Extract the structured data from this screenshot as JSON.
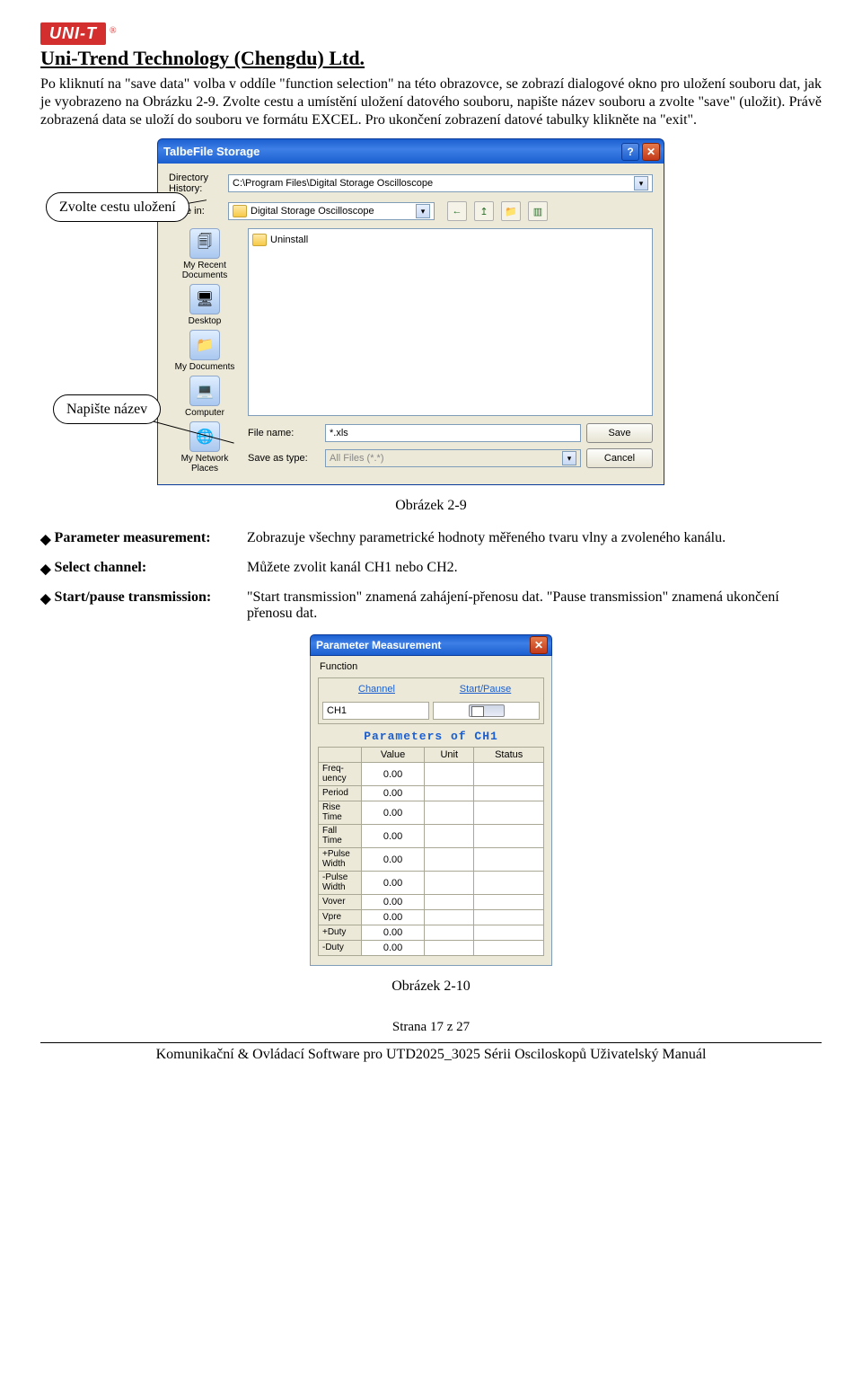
{
  "header": {
    "logo_text": "UNI-T",
    "reg": "®",
    "company": "Uni-Trend Technology (Chengdu) Ltd."
  },
  "paragraph": "Po kliknutí na \"save data\" volba v oddíle \"function selection\" na této obrazovce, se zobrazí dialogové okno pro uložení souboru dat, jak je vyobrazeno na Obrázku 2-9. Zvolte cestu a umístění uložení datového souboru, napište název souboru a zvolte \"save\" (uložit). Právě zobrazená data se uloží do souboru ve formátu EXCEL. Pro ukončení zobrazení datové tabulky klikněte na \"exit\".",
  "callouts": {
    "path": "Zvolte cestu\nuložení",
    "name": "Napište\nnázev"
  },
  "save_dialog": {
    "title": "TalbeFile Storage",
    "dir_history_label": "Directory\nHistory:",
    "dir_history_value": "C:\\Program Files\\Digital Storage Oscilloscope",
    "save_in_label": "Save in:",
    "save_in_value": "Digital Storage Oscilloscope",
    "nav_icons": [
      "←",
      "↥",
      "📁",
      "▥"
    ],
    "places": [
      {
        "icon": "🗐",
        "label": "My Recent\nDocuments"
      },
      {
        "icon": "🖥",
        "label": "Desktop"
      },
      {
        "icon": "📁",
        "label": "My Documents"
      },
      {
        "icon": "💻",
        "label": "Computer"
      },
      {
        "icon": "🌐",
        "label": "My Network\nPlaces"
      }
    ],
    "file_list": [
      {
        "name": "Uninstall"
      }
    ],
    "filename_label": "File name:",
    "filename_value": "*.xls",
    "filetype_label": "Save as type:",
    "filetype_value": "All Files (*.*)",
    "save_btn": "Save",
    "cancel_btn": "Cancel"
  },
  "fig1_caption": "Obrázek 2-9",
  "definitions": [
    {
      "label": "Parameter measurement:",
      "text": "Zobrazuje všechny parametrické hodnoty měřeného tvaru vlny a zvoleného kanálu."
    },
    {
      "label": "Select channel:",
      "text": "Můžete zvolit kanál CH1 nebo CH2."
    },
    {
      "label": "Start/pause transmission:",
      "text": "\"Start transmission\" znamená zahájení-přenosu dat. \"Pause transmission\" znamená ukončení přenosu dat."
    }
  ],
  "pm_dialog": {
    "title": "Parameter Measurement",
    "menu": "Function",
    "col1": "Channel",
    "col2": "Start/Pause",
    "channel_value": "CH1",
    "section_title": "Parameters of CH1",
    "headers": [
      "",
      "Value",
      "Unit",
      "Status"
    ],
    "rows": [
      {
        "name": "Freq-\nuency",
        "value": "0.00"
      },
      {
        "name": "Period",
        "value": "0.00"
      },
      {
        "name": "Rise\nTime",
        "value": "0.00"
      },
      {
        "name": "Fall\nTime",
        "value": "0.00"
      },
      {
        "name": "+Pulse\nWidth",
        "value": "0.00"
      },
      {
        "name": "-Pulse\nWidth",
        "value": "0.00"
      },
      {
        "name": "Vover",
        "value": "0.00"
      },
      {
        "name": "Vpre",
        "value": "0.00"
      },
      {
        "name": "+Duty",
        "value": "0.00"
      },
      {
        "name": "-Duty",
        "value": "0.00"
      }
    ]
  },
  "fig2_caption": "Obrázek 2-10",
  "page_number": "Strana 17 z 27",
  "footer": "Komunikační & Ovládací Software pro UTD2025_3025 Sérii Osciloskopů Uživatelský Manuál"
}
